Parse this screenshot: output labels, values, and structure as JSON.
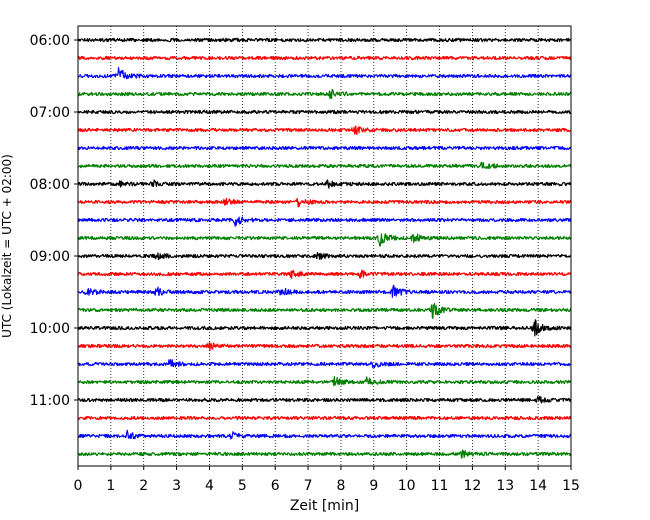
{
  "chart_data": {
    "type": "line",
    "title": "",
    "xlabel": "Zeit  [min]",
    "ylabel": "UTC (Lokalzeit = UTC + 02:00)",
    "xlim": [
      0,
      15
    ],
    "x_ticks": [
      0,
      1,
      2,
      3,
      4,
      5,
      6,
      7,
      8,
      9,
      10,
      11,
      12,
      13,
      14,
      15
    ],
    "grid": "vertical dotted",
    "trace_interval_min": 15,
    "trace_colors": [
      "#000000",
      "#ff0000",
      "#0000ff",
      "#008000"
    ],
    "y_tick_labels": [
      "06:00",
      "07:00",
      "08:00",
      "09:00",
      "10:00",
      "11:00"
    ],
    "traces": [
      {
        "start": "06:00",
        "color": "#000000",
        "events": []
      },
      {
        "start": "06:15",
        "color": "#ff0000",
        "events": []
      },
      {
        "start": "06:30",
        "color": "#0000ff",
        "events": [
          {
            "t": 1.25,
            "amp": 9
          }
        ]
      },
      {
        "start": "06:45",
        "color": "#008000",
        "events": [
          {
            "t": 7.7,
            "amp": 4
          }
        ]
      },
      {
        "start": "07:00",
        "color": "#000000",
        "events": []
      },
      {
        "start": "07:15",
        "color": "#ff0000",
        "events": [
          {
            "t": 8.4,
            "amp": 5
          }
        ]
      },
      {
        "start": "07:30",
        "color": "#0000ff",
        "events": []
      },
      {
        "start": "07:45",
        "color": "#008000",
        "events": [
          {
            "t": 12.3,
            "amp": 4
          }
        ]
      },
      {
        "start": "08:00",
        "color": "#000000",
        "events": [
          {
            "t": 1.3,
            "amp": 3
          },
          {
            "t": 2.3,
            "amp": 3
          },
          {
            "t": 7.6,
            "amp": 3
          }
        ]
      },
      {
        "start": "08:15",
        "color": "#ff0000",
        "events": [
          {
            "t": 4.5,
            "amp": 3
          },
          {
            "t": 6.7,
            "amp": 4
          }
        ]
      },
      {
        "start": "08:30",
        "color": "#0000ff",
        "events": [
          {
            "t": 4.8,
            "amp": 5
          }
        ]
      },
      {
        "start": "08:45",
        "color": "#008000",
        "events": [
          {
            "t": 9.2,
            "amp": 7
          },
          {
            "t": 10.2,
            "amp": 5
          }
        ]
      },
      {
        "start": "09:00",
        "color": "#000000",
        "events": [
          {
            "t": 2.4,
            "amp": 3
          },
          {
            "t": 7.3,
            "amp": 3
          }
        ]
      },
      {
        "start": "09:15",
        "color": "#ff0000",
        "events": [
          {
            "t": 6.5,
            "amp": 3
          },
          {
            "t": 8.6,
            "amp": 3
          }
        ]
      },
      {
        "start": "09:30",
        "color": "#0000ff",
        "events": [
          {
            "t": 0.3,
            "amp": 4
          },
          {
            "t": 2.4,
            "amp": 4
          },
          {
            "t": 6.2,
            "amp": 4
          },
          {
            "t": 9.6,
            "amp": 6
          }
        ]
      },
      {
        "start": "09:45",
        "color": "#008000",
        "events": [
          {
            "t": 10.8,
            "amp": 7
          }
        ]
      },
      {
        "start": "10:00",
        "color": "#000000",
        "events": [
          {
            "t": 13.9,
            "amp": 8
          }
        ]
      },
      {
        "start": "10:15",
        "color": "#ff0000",
        "events": [
          {
            "t": 4.0,
            "amp": 3
          }
        ]
      },
      {
        "start": "10:30",
        "color": "#0000ff",
        "events": [
          {
            "t": 2.8,
            "amp": 4
          },
          {
            "t": 9.0,
            "amp": 3
          }
        ]
      },
      {
        "start": "10:45",
        "color": "#008000",
        "events": [
          {
            "t": 7.8,
            "amp": 5
          },
          {
            "t": 8.8,
            "amp": 4
          }
        ]
      },
      {
        "start": "11:00",
        "color": "#000000",
        "events": [
          {
            "t": 14.0,
            "amp": 3
          }
        ]
      },
      {
        "start": "11:15",
        "color": "#ff0000",
        "events": []
      },
      {
        "start": "11:30",
        "color": "#0000ff",
        "events": [
          {
            "t": 1.5,
            "amp": 4
          },
          {
            "t": 4.7,
            "amp": 3
          }
        ]
      },
      {
        "start": "11:45",
        "color": "#008000",
        "events": [
          {
            "t": 11.7,
            "amp": 3
          }
        ]
      }
    ]
  }
}
